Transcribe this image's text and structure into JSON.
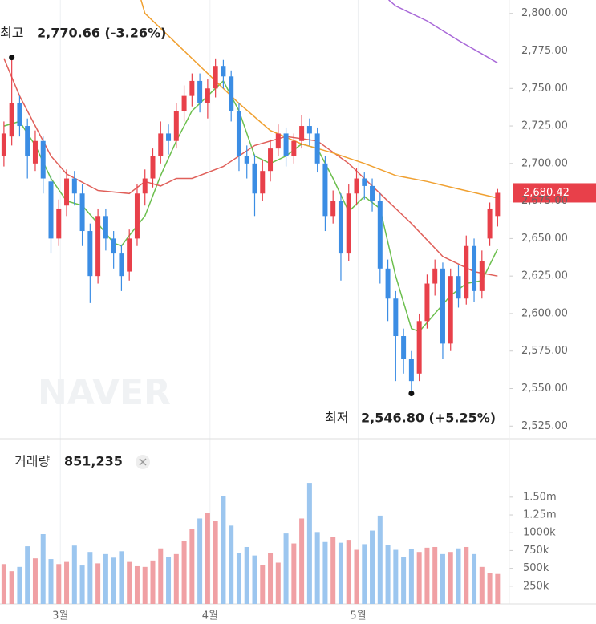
{
  "chart_data": {
    "type": "candlestick",
    "open": [
      2705,
      2718,
      2740,
      2725,
      2700,
      2715,
      2688,
      2650,
      2672,
      2690,
      2680,
      2655,
      2625,
      2665,
      2650,
      2640,
      2628,
      2650,
      2680,
      2690,
      2705,
      2720,
      2715,
      2735,
      2745,
      2755,
      2740,
      2750,
      2765,
      2758,
      2735,
      2705,
      2700,
      2680,
      2695,
      2710,
      2720,
      2705,
      2715,
      2725,
      2720,
      2700,
      2665,
      2675,
      2640,
      2680,
      2690,
      2685,
      2675,
      2630,
      2610,
      2585,
      2570,
      2560,
      2595,
      2620,
      2630,
      2580,
      2625,
      2610,
      2645,
      2615,
      2650,
      2665
    ],
    "high": [
      2728,
      2770.66,
      2745,
      2730,
      2722,
      2718,
      2692,
      2676,
      2696,
      2695,
      2686,
      2660,
      2670,
      2670,
      2655,
      2646,
      2656,
      2686,
      2696,
      2710,
      2728,
      2726,
      2740,
      2752,
      2760,
      2760,
      2756,
      2770,
      2769,
      2762,
      2740,
      2712,
      2706,
      2702,
      2716,
      2726,
      2724,
      2720,
      2732,
      2730,
      2724,
      2705,
      2682,
      2680,
      2686,
      2697,
      2694,
      2690,
      2680,
      2636,
      2615,
      2590,
      2575,
      2600,
      2626,
      2636,
      2634,
      2630,
      2632,
      2652,
      2650,
      2642,
      2674,
      2683
    ],
    "low": [
      2698,
      2712,
      2718,
      2690,
      2695,
      2680,
      2640,
      2645,
      2665,
      2672,
      2645,
      2607,
      2620,
      2642,
      2630,
      2615,
      2622,
      2645,
      2672,
      2684,
      2700,
      2706,
      2710,
      2728,
      2738,
      2734,
      2730,
      2744,
      2750,
      2728,
      2695,
      2690,
      2665,
      2675,
      2688,
      2705,
      2698,
      2700,
      2710,
      2712,
      2694,
      2655,
      2660,
      2622,
      2635,
      2672,
      2676,
      2668,
      2620,
      2595,
      2555,
      2560,
      2546.8,
      2555,
      2590,
      2612,
      2570,
      2575,
      2604,
      2606,
      2608,
      2610,
      2645,
      2658
    ],
    "close": [
      2720,
      2740,
      2725,
      2705,
      2715,
      2690,
      2650,
      2670,
      2690,
      2680,
      2655,
      2625,
      2665,
      2650,
      2640,
      2625,
      2650,
      2680,
      2690,
      2705,
      2720,
      2715,
      2735,
      2745,
      2755,
      2740,
      2750,
      2765,
      2758,
      2735,
      2705,
      2700,
      2680,
      2695,
      2710,
      2720,
      2705,
      2715,
      2725,
      2720,
      2700,
      2665,
      2675,
      2640,
      2680,
      2690,
      2685,
      2675,
      2630,
      2610,
      2585,
      2570,
      2555,
      2595,
      2620,
      2630,
      2580,
      2625,
      2610,
      2645,
      2615,
      2635,
      2670,
      2680.42
    ],
    "up_color": "#e8404a",
    "down_color": "#3b8de4",
    "xlim": [
      -0.5,
      64.5
    ],
    "xticks": [
      {
        "value": 7.2,
        "label": "3월"
      },
      {
        "value": 26.3,
        "label": "4월"
      },
      {
        "value": 45.2,
        "label": "5월"
      }
    ],
    "ylim": [
      2515,
      2810
    ],
    "yticks": [
      {
        "value": 2525,
        "label": "2,525.00"
      },
      {
        "value": 2550,
        "label": "2,550.00"
      },
      {
        "value": 2575,
        "label": "2,575.00"
      },
      {
        "value": 2600,
        "label": "2,600.00"
      },
      {
        "value": 2625,
        "label": "2,625.00"
      },
      {
        "value": 2650,
        "label": "2,650.00"
      },
      {
        "value": 2675,
        "label": "2,675.00"
      },
      {
        "value": 2700,
        "label": "2,700.00"
      },
      {
        "value": 2725,
        "label": "2,725.00"
      },
      {
        "value": 2750,
        "label": "2,750.00"
      },
      {
        "value": 2775,
        "label": "2,775.00"
      },
      {
        "value": 2800,
        "label": "2,800.00"
      }
    ],
    "last_label": "2,680.42",
    "last_color": "#e8404a",
    "lines": [
      {
        "color": "#6cbf4e",
        "x": [
          0,
          2,
          4,
          6,
          8,
          10,
          12,
          14,
          15,
          16,
          18,
          20,
          22,
          24,
          26,
          28,
          30,
          32,
          34,
          36,
          38,
          40,
          42,
          44,
          46,
          48,
          50,
          52,
          53,
          55,
          57,
          59,
          61,
          63
        ],
        "values": [
          2725,
          2728,
          2712,
          2690,
          2675,
          2672,
          2660,
          2647,
          2645,
          2652,
          2665,
          2692,
          2715,
          2735,
          2745,
          2755,
          2735,
          2705,
          2700,
          2705,
          2713,
          2710,
          2690,
          2668,
          2678,
          2670,
          2625,
          2590,
          2588,
          2600,
          2612,
          2620,
          2622,
          2643
        ]
      },
      {
        "color": "#e0605a",
        "x": [
          0,
          2,
          4,
          6,
          8,
          12,
          16,
          18,
          20,
          22,
          24,
          28,
          32,
          36,
          40,
          44,
          48,
          52,
          56,
          60,
          63
        ],
        "values": [
          2770,
          2745,
          2725,
          2705,
          2693,
          2682,
          2680,
          2688,
          2685,
          2690,
          2690,
          2698,
          2712,
          2718,
          2715,
          2700,
          2680,
          2660,
          2638,
          2628,
          2625
        ]
      },
      {
        "color": "#f0a030",
        "x": [
          17.5,
          18,
          22,
          26,
          30,
          34,
          38,
          42,
          46,
          50,
          54,
          58,
          63
        ],
        "values": [
          2809,
          2800,
          2780,
          2760,
          2740,
          2722,
          2713,
          2707,
          2700,
          2692,
          2688,
          2683,
          2677
        ]
      },
      {
        "color": "#a868d8",
        "x": [
          49.1,
          50,
          54,
          58,
          62,
          63
        ],
        "values": [
          2809,
          2805,
          2795,
          2782,
          2770,
          2767
        ]
      }
    ],
    "annotations": {
      "high_label": "최고",
      "high_text": "2,770.66 (-3.26%)",
      "low_label": "최저",
      "low_text": "2,546.80 (+5.25%)"
    },
    "watermark": "NAVER",
    "volume": {
      "name": "거래량",
      "label": "851,235",
      "up_color": "#f0a0a4",
      "down_color": "#9cc6ef",
      "values": [
        560000,
        460000,
        520000,
        810000,
        640000,
        980000,
        630000,
        560000,
        590000,
        820000,
        540000,
        730000,
        570000,
        700000,
        650000,
        740000,
        590000,
        530000,
        520000,
        610000,
        780000,
        660000,
        700000,
        880000,
        1050000,
        1200000,
        1280000,
        1170000,
        1510000,
        1100000,
        720000,
        800000,
        680000,
        550000,
        710000,
        580000,
        990000,
        850000,
        1200000,
        1700000,
        1010000,
        870000,
        940000,
        860000,
        900000,
        760000,
        840000,
        1030000,
        1240000,
        830000,
        760000,
        660000,
        770000,
        730000,
        790000,
        800000,
        700000,
        730000,
        780000,
        800000,
        700000,
        520000,
        430000,
        420000
      ],
      "ylim": [
        0,
        1800000
      ],
      "yticks": [
        {
          "value": 250000,
          "label": "250k"
        },
        {
          "value": 500000,
          "label": "500k"
        },
        {
          "value": 750000,
          "label": "750k"
        },
        {
          "value": 1000000,
          "label": "1000k"
        },
        {
          "value": 1250000,
          "label": "1.25m"
        },
        {
          "value": 1500000,
          "label": "1.50m"
        }
      ]
    }
  }
}
